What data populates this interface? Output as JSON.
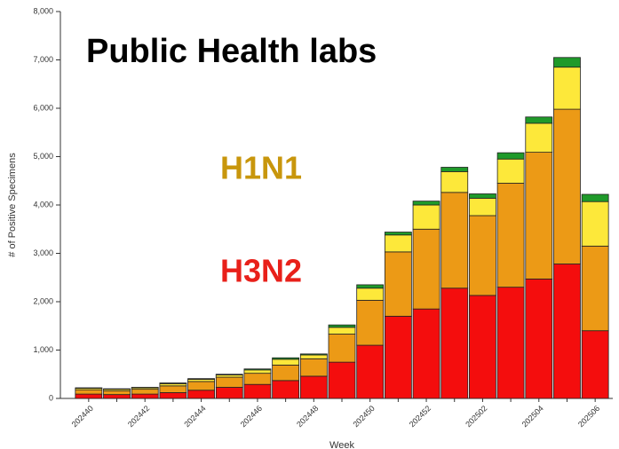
{
  "chart_data": {
    "type": "stacked_bar",
    "title": "Public Health labs",
    "annotations": [
      {
        "text": "H1N1",
        "color": "#c8960c"
      },
      {
        "text": "H3N2",
        "color": "#e8201a"
      }
    ],
    "x_label": "Week",
    "y_label": "# of Positive Specimens",
    "categories": [
      "202440",
      null,
      "202442",
      null,
      "202444",
      null,
      "202446",
      null,
      "202448",
      null,
      "202450",
      null,
      "202452",
      null,
      "202502",
      null,
      "202504",
      null,
      "202506"
    ],
    "series": [
      {
        "color": "#f40d0d",
        "values": [
          90,
          80,
          90,
          120,
          170,
          230,
          290,
          370,
          460,
          750,
          1100,
          1700,
          1850,
          2280,
          2130,
          2300,
          2470,
          2780,
          1400
        ]
      },
      {
        "color": "#ec9a16",
        "values": [
          90,
          80,
          100,
          140,
          180,
          210,
          230,
          320,
          360,
          580,
          930,
          1330,
          1650,
          1980,
          1650,
          2150,
          2620,
          3200,
          1750
        ]
      },
      {
        "color": "#fde83a",
        "values": [
          30,
          30,
          30,
          45,
          45,
          45,
          70,
          120,
          80,
          140,
          250,
          350,
          500,
          430,
          360,
          500,
          600,
          870,
          920
        ]
      },
      {
        "color": "#1f9a2a",
        "values": [
          10,
          10,
          10,
          15,
          15,
          15,
          20,
          30,
          20,
          50,
          70,
          60,
          80,
          90,
          90,
          130,
          130,
          200,
          150
        ]
      }
    ],
    "ylim": [
      0,
      8000
    ],
    "yticks": [
      0,
      {
        "value": 1000,
        "label": "1,000"
      },
      {
        "value": 2000,
        "label": "2,000"
      },
      {
        "value": 3000,
        "label": "3,000"
      },
      {
        "value": 4000,
        "label": "4,000"
      },
      {
        "value": 5000,
        "label": "5,000"
      },
      {
        "value": 6000,
        "label": "6,000"
      },
      {
        "value": 7000,
        "label": "7,000"
      },
      {
        "value": 8000,
        "label": "8,000"
      }
    ],
    "grid": false
  }
}
